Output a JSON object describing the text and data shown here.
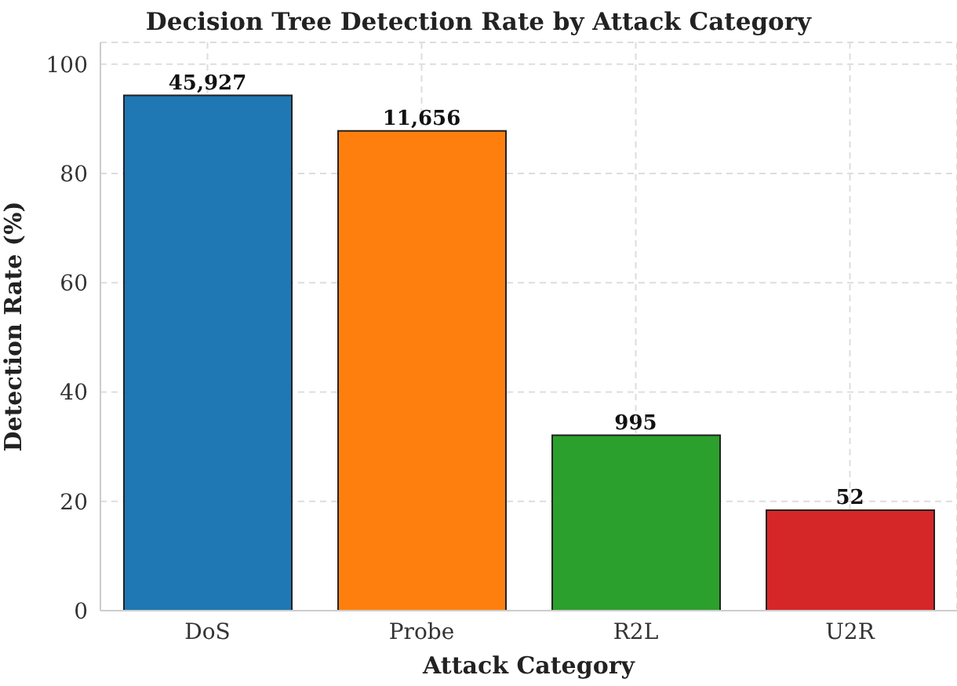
{
  "chart_data": {
    "type": "bar",
    "title": "Decision Tree Detection Rate by Attack Category",
    "xlabel": "Attack Category",
    "ylabel": "Detection Rate (%)",
    "categories": [
      "DoS",
      "Probe",
      "R2L",
      "U2R"
    ],
    "values": [
      94.3,
      87.8,
      32.1,
      18.4
    ],
    "colors": [
      "#1f77b4",
      "#ff7f0e",
      "#2ca02c",
      "#d62728"
    ],
    "annotations": [
      {
        "text": "45,927",
        "x": "DoS",
        "y": 94.3
      },
      {
        "text": "11,656",
        "x": "Probe",
        "y": 87.8
      },
      {
        "text": "995",
        "x": "R2L",
        "y": 32.1
      },
      {
        "text": "52",
        "x": "U2R",
        "y": 18.4
      }
    ],
    "ylim": [
      0,
      104
    ],
    "yticks": [
      0,
      20,
      40,
      60,
      80,
      100
    ],
    "grid": true
  }
}
